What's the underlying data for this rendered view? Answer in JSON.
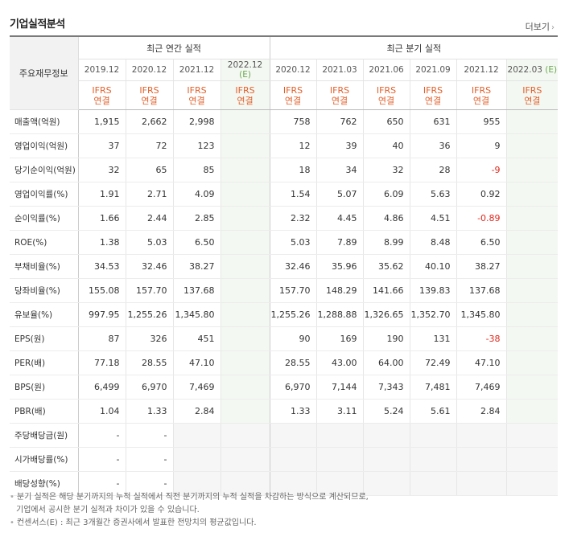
{
  "header": {
    "title": "기업실적분석",
    "more_label": "더보기",
    "more_icon": "chevron-right-icon"
  },
  "table": {
    "item_header": "주요재무정보",
    "group_annual": "최근 연간 실적",
    "group_quarter": "최근 분기 실적",
    "periods": [
      {
        "label": "2019.12",
        "badge": "",
        "basis1": "IFRS",
        "basis2": "연결"
      },
      {
        "label": "2020.12",
        "badge": "",
        "basis1": "IFRS",
        "basis2": "연결"
      },
      {
        "label": "2021.12",
        "badge": "",
        "basis1": "IFRS",
        "basis2": "연결"
      },
      {
        "label": "2022.12",
        "badge": "(E)",
        "basis1": "IFRS",
        "basis2": "연결"
      },
      {
        "label": "2020.12",
        "badge": "",
        "basis1": "IFRS",
        "basis2": "연결"
      },
      {
        "label": "2021.03",
        "badge": "",
        "basis1": "IFRS",
        "basis2": "연결"
      },
      {
        "label": "2021.06",
        "badge": "",
        "basis1": "IFRS",
        "basis2": "연결"
      },
      {
        "label": "2021.09",
        "badge": "",
        "basis1": "IFRS",
        "basis2": "연결"
      },
      {
        "label": "2021.12",
        "badge": "",
        "basis1": "IFRS",
        "basis2": "연결"
      },
      {
        "label": "2022.03",
        "badge": "(E)",
        "basis1": "IFRS",
        "basis2": "연결"
      }
    ],
    "rows": [
      {
        "label": "매출액(억원)",
        "values": [
          "1,915",
          "2,662",
          "2,998",
          "",
          "758",
          "762",
          "650",
          "631",
          "955",
          ""
        ]
      },
      {
        "label": "영업이익(억원)",
        "values": [
          "37",
          "72",
          "123",
          "",
          "12",
          "39",
          "40",
          "36",
          "9",
          ""
        ]
      },
      {
        "label": "당기순이익(억원)",
        "values": [
          "32",
          "65",
          "85",
          "",
          "18",
          "34",
          "32",
          "28",
          "-9",
          ""
        ]
      },
      {
        "label": "영업이익률(%)",
        "values": [
          "1.91",
          "2.71",
          "4.09",
          "",
          "1.54",
          "5.07",
          "6.09",
          "5.63",
          "0.92",
          ""
        ]
      },
      {
        "label": "순이익률(%)",
        "values": [
          "1.66",
          "2.44",
          "2.85",
          "",
          "2.32",
          "4.45",
          "4.86",
          "4.51",
          "-0.89",
          ""
        ]
      },
      {
        "label": "ROE(%)",
        "values": [
          "1.38",
          "5.03",
          "6.50",
          "",
          "5.03",
          "7.89",
          "8.99",
          "8.48",
          "6.50",
          ""
        ]
      },
      {
        "label": "부채비율(%)",
        "values": [
          "34.53",
          "32.46",
          "38.27",
          "",
          "32.46",
          "35.96",
          "35.62",
          "40.10",
          "38.27",
          ""
        ]
      },
      {
        "label": "당좌비율(%)",
        "values": [
          "155.08",
          "157.70",
          "137.68",
          "",
          "157.70",
          "148.29",
          "141.66",
          "139.83",
          "137.68",
          ""
        ]
      },
      {
        "label": "유보율(%)",
        "values": [
          "997.95",
          "1,255.26",
          "1,345.80",
          "",
          "1,255.26",
          "1,288.88",
          "1,326.65",
          "1,352.70",
          "1,345.80",
          ""
        ]
      },
      {
        "label": "EPS(원)",
        "values": [
          "87",
          "326",
          "451",
          "",
          "90",
          "169",
          "190",
          "131",
          "-38",
          ""
        ]
      },
      {
        "label": "PER(배)",
        "values": [
          "77.18",
          "28.55",
          "47.10",
          "",
          "28.55",
          "43.00",
          "64.00",
          "72.49",
          "47.10",
          ""
        ]
      },
      {
        "label": "BPS(원)",
        "values": [
          "6,499",
          "6,970",
          "7,469",
          "",
          "6,970",
          "7,144",
          "7,343",
          "7,481",
          "7,469",
          ""
        ]
      },
      {
        "label": "PBR(배)",
        "values": [
          "1.04",
          "1.33",
          "2.84",
          "",
          "1.33",
          "3.11",
          "5.24",
          "5.61",
          "2.84",
          ""
        ]
      },
      {
        "label": "주당배당금(원)",
        "values": [
          "-",
          "-",
          "",
          "",
          "",
          "",
          "",
          "",
          "",
          ""
        ]
      },
      {
        "label": "시가배당률(%)",
        "values": [
          "-",
          "-",
          "",
          "",
          "",
          "",
          "",
          "",
          "",
          ""
        ]
      },
      {
        "label": "배당성향(%)",
        "values": [
          "-",
          "-",
          "",
          "",
          "",
          "",
          "",
          "",
          "",
          ""
        ]
      }
    ],
    "group_breaks_before": [
      3,
      6,
      9,
      13
    ],
    "blank_rows_from": 13
  },
  "notes": {
    "line1": "분기 실적은 해당 분기까지의 누적 실적에서 직전 분기까지의 누적 실적을 차감하는 방식으로 계산되므로,",
    "line2": "기업에서 공시한 분기 실적과 차이가 있을 수 있습니다.",
    "line3": "컨센서스(E) : 최근 3개월간 증권사에서 발표한 전망치의 평균값입니다."
  },
  "colors": {
    "accent": "#e25f2a",
    "estimate_bg": "#f4f8f2",
    "estimate_badge": "#6aa84f",
    "negative": "#e0281c"
  }
}
